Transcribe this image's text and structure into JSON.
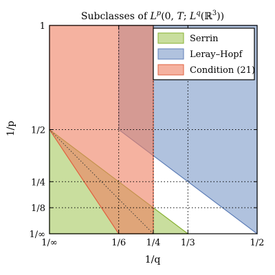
{
  "chart_data": {
    "type": "area",
    "title": "Subclasses of L^p(0, T; L^q(ℝ³))",
    "xlabel": "1/q",
    "ylabel": "1/p",
    "xlim": [
      0,
      0.5
    ],
    "ylim": [
      0,
      1
    ],
    "grid": true,
    "legend_position": "top-right",
    "x_ticks": [
      {
        "value": 0,
        "label": "1/∞"
      },
      {
        "value": 0.16667,
        "label": "1/6"
      },
      {
        "value": 0.25,
        "label": "1/4"
      },
      {
        "value": 0.33333,
        "label": "1/3"
      },
      {
        "value": 0.5,
        "label": "1/2"
      }
    ],
    "y_ticks": [
      {
        "value": 0,
        "label": "1/∞"
      },
      {
        "value": 0.125,
        "label": "1/8"
      },
      {
        "value": 0.25,
        "label": "1/4"
      },
      {
        "value": 0.5,
        "label": "1/2"
      },
      {
        "value": 1,
        "label": "1"
      }
    ],
    "series": [
      {
        "name": "Serrin",
        "color": "#9dc34f",
        "edge_color": "#86b030",
        "opacity": 0.55,
        "points": [
          [
            0,
            0
          ],
          [
            0.33333,
            0
          ],
          [
            0,
            0.5
          ]
        ]
      },
      {
        "name": "Leray–Hopf",
        "color": "#6f8fc3",
        "edge_color": "#5f7fb8",
        "opacity": 0.55,
        "points": [
          [
            0.16667,
            1
          ],
          [
            0.5,
            1
          ],
          [
            0.5,
            0
          ],
          [
            0.16667,
            0.5
          ]
        ]
      },
      {
        "name": "Condition (21)",
        "color": "#ee7e60",
        "edge_color": "#e0603f",
        "opacity": 0.6,
        "points": [
          [
            0,
            1
          ],
          [
            0.25,
            1
          ],
          [
            0.25,
            0
          ],
          [
            0.16667,
            0
          ],
          [
            0,
            0.5
          ]
        ]
      }
    ],
    "dotted_lines": [
      {
        "points": [
          [
            0,
            0.5
          ],
          [
            0.25,
            0
          ]
        ]
      }
    ]
  }
}
